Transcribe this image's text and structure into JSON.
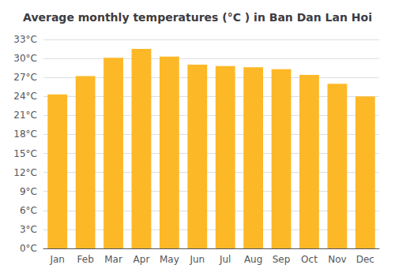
{
  "chart_data": {
    "type": "bar",
    "title": "Average monthly temperatures (°C ) in Ban Dan Lan Hoi",
    "categories": [
      "Jan",
      "Feb",
      "Mar",
      "Apr",
      "May",
      "Jun",
      "Jul",
      "Aug",
      "Sep",
      "Oct",
      "Nov",
      "Dec"
    ],
    "values": [
      24.3,
      27.2,
      30.1,
      31.5,
      30.3,
      29.0,
      28.8,
      28.6,
      28.3,
      27.4,
      26.0,
      24.0
    ],
    "color": "#FDB827",
    "ylim": [
      0,
      33
    ],
    "yticks": [
      {
        "value": 0,
        "label": "0°C"
      },
      {
        "value": 3,
        "label": "3°C"
      },
      {
        "value": 6,
        "label": "6°C"
      },
      {
        "value": 9,
        "label": "9°C"
      },
      {
        "value": 12,
        "label": "12°C"
      },
      {
        "value": 15,
        "label": "15°C"
      },
      {
        "value": 18,
        "label": "18°C"
      },
      {
        "value": 21,
        "label": "21°C"
      },
      {
        "value": 24,
        "label": "24°C"
      },
      {
        "value": 27,
        "label": "27°C"
      },
      {
        "value": 30,
        "label": "30°C"
      },
      {
        "value": 33,
        "label": "33°C"
      }
    ],
    "grid": true
  }
}
